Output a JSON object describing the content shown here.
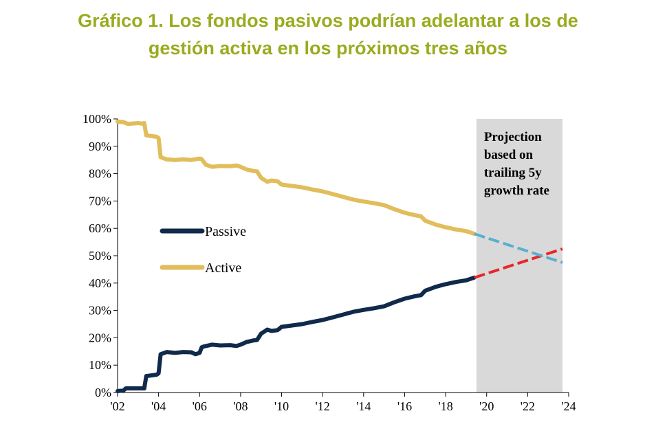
{
  "title": {
    "line1": "Gráfico 1. Los fondos pasivos podrían adelantar a los de",
    "line2": "gestión activa en los próximos tres años"
  },
  "chart_data": {
    "type": "line",
    "xlim": [
      2002,
      2024
    ],
    "ylim": [
      0,
      100
    ],
    "x_ticks": [
      2002,
      2004,
      2006,
      2008,
      2010,
      2012,
      2014,
      2016,
      2018,
      2020,
      2022,
      2024
    ],
    "x_tick_labels": [
      "'02",
      "'04",
      "'06",
      "'08",
      "'10",
      "'12",
      "'14",
      "'16",
      "'18",
      "'20",
      "'22",
      "'24"
    ],
    "y_ticks": [
      0,
      10,
      20,
      30,
      40,
      50,
      60,
      70,
      80,
      90,
      100
    ],
    "y_tick_labels": [
      "0%",
      "10%",
      "20%",
      "30%",
      "40%",
      "50%",
      "60%",
      "70%",
      "80%",
      "90%",
      "100%"
    ],
    "grid": false,
    "legend_placement": "center-left",
    "projection_region": {
      "x_start": 2019.5,
      "x_end": 2023.7,
      "color": "#d9d9d9",
      "label_lines": [
        "Projection",
        "based on",
        "trailing 5y",
        "growth rate"
      ]
    },
    "series": [
      {
        "name": "Passive",
        "color": "#0f2a4a",
        "x": [
          2002.0,
          2002.3,
          2002.4,
          2002.8,
          2003.2,
          2003.3,
          2003.4,
          2003.9,
          2004.0,
          2004.1,
          2004.4,
          2004.8,
          2005.2,
          2005.6,
          2005.8,
          2006.0,
          2006.1,
          2006.2,
          2006.6,
          2007.0,
          2007.5,
          2007.8,
          2008.0,
          2008.3,
          2008.6,
          2008.8,
          2009.0,
          2009.3,
          2009.5,
          2009.8,
          2010.0,
          2010.5,
          2011.0,
          2011.5,
          2012.0,
          2012.5,
          2013.0,
          2013.5,
          2014.0,
          2014.5,
          2015.0,
          2015.5,
          2016.0,
          2016.5,
          2016.8,
          2017.0,
          2017.5,
          2018.0,
          2018.5,
          2019.0,
          2019.4
        ],
        "y": [
          0.5,
          0.8,
          1.5,
          1.5,
          1.5,
          1.5,
          6.0,
          6.5,
          7.0,
          14.0,
          14.8,
          14.5,
          14.8,
          14.7,
          14.0,
          14.5,
          16.5,
          16.8,
          17.5,
          17.2,
          17.3,
          17.0,
          17.5,
          18.5,
          19.0,
          19.2,
          21.5,
          23.0,
          22.5,
          22.8,
          24.0,
          24.5,
          25.0,
          25.8,
          26.5,
          27.5,
          28.5,
          29.5,
          30.2,
          30.8,
          31.5,
          33.0,
          34.3,
          35.2,
          35.6,
          37.2,
          38.6,
          39.6,
          40.4,
          41.0,
          42.0
        ]
      },
      {
        "name": "Active",
        "color": "#e1bd5b",
        "x": [
          2002.0,
          2002.3,
          2002.5,
          2003.0,
          2003.2,
          2003.3,
          2003.4,
          2003.9,
          2004.0,
          2004.1,
          2004.4,
          2004.8,
          2005.2,
          2005.6,
          2006.0,
          2006.1,
          2006.3,
          2006.6,
          2007.0,
          2007.5,
          2007.8,
          2008.0,
          2008.3,
          2008.6,
          2008.8,
          2009.0,
          2009.3,
          2009.5,
          2009.8,
          2010.0,
          2010.5,
          2011.0,
          2011.5,
          2012.0,
          2012.5,
          2013.0,
          2013.5,
          2014.0,
          2014.5,
          2015.0,
          2015.5,
          2016.0,
          2016.5,
          2016.8,
          2017.0,
          2017.5,
          2018.0,
          2018.5,
          2019.0,
          2019.4
        ],
        "y": [
          99.0,
          98.8,
          98.2,
          98.5,
          98.3,
          98.5,
          94.0,
          93.5,
          93.0,
          86.0,
          85.2,
          85.0,
          85.2,
          85.0,
          85.5,
          85.3,
          83.3,
          82.5,
          82.8,
          82.7,
          83.0,
          82.5,
          81.5,
          81.0,
          80.8,
          78.5,
          77.0,
          77.5,
          77.2,
          76.0,
          75.5,
          75.0,
          74.2,
          73.5,
          72.5,
          71.5,
          70.5,
          69.8,
          69.2,
          68.5,
          67.0,
          65.7,
          64.8,
          64.4,
          62.8,
          61.4,
          60.4,
          59.6,
          59.0,
          58.0
        ]
      }
    ],
    "projections": [
      {
        "series": "Passive",
        "color": "#e8262b",
        "x": [
          2019.4,
          2023.7
        ],
        "y": [
          42.0,
          52.5
        ]
      },
      {
        "series": "Active",
        "color": "#5bafd0",
        "x": [
          2019.4,
          2023.7
        ],
        "y": [
          58.0,
          47.5
        ]
      }
    ]
  }
}
